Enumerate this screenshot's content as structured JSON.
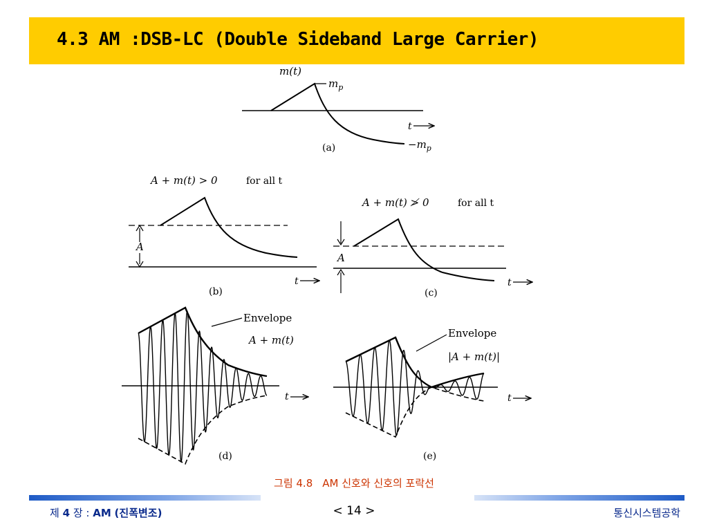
{
  "slide": {
    "title": "4.3 AM :DSB-LC (Double Sideband Large Carrier)"
  },
  "figure": {
    "a": {
      "signal_label": "m(t)",
      "peak_label": "m",
      "peak_sub": "p",
      "neg_peak_label": "−m",
      "neg_peak_sub": "p",
      "t_label": "t",
      "panel_label": "(a)"
    },
    "b": {
      "condition": "A + m(t) > 0",
      "condition_suffix": "for all t",
      "amp_label": "A",
      "t_label": "t",
      "panel_label": "(b)"
    },
    "c": {
      "condition": "A + m(t) ≯ 0",
      "condition_suffix": "for all t",
      "amp_label": "A",
      "t_label": "t",
      "panel_label": "(c)"
    },
    "d": {
      "envelope_label": "Envelope",
      "envelope_expr": "A + m(t)",
      "t_label": "t",
      "panel_label": "(d)"
    },
    "e": {
      "envelope_label": "Envelope",
      "envelope_expr": "|A + m(t)|",
      "t_label": "t",
      "panel_label": "(e)"
    }
  },
  "caption": {
    "number": "그림 4.8",
    "text": "AM 신호와 신호의 포락선"
  },
  "footer": {
    "chapter_prefix": "제",
    "chapter_num": "4",
    "chapter_mid": "장 :",
    "chapter_topic": "AM",
    "chapter_paren": "(진폭변조)",
    "page": "< 14 >",
    "course": "통신시스템공학"
  }
}
